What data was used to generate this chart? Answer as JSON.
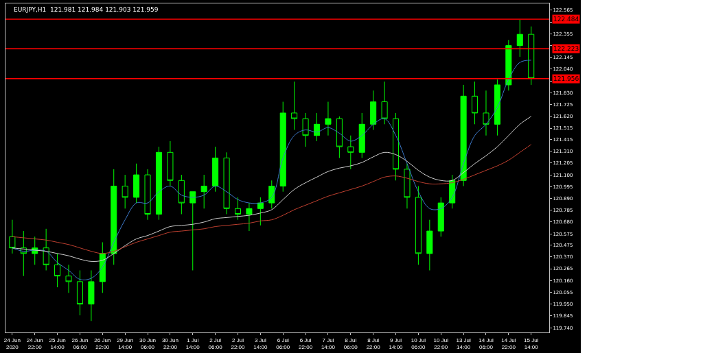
{
  "chart_data": {
    "type": "candlestick",
    "title": "EURJPY,H1  121.981 121.984 121.903 121.959",
    "categories": [
      "24 Jun 2020",
      null,
      "24 Jun 22:00",
      null,
      "25 Jun 14:00",
      null,
      "26 Jun 06:00",
      null,
      "26 Jun 22:00",
      null,
      "29 Jun 14:00",
      null,
      "30 Jun 06:00",
      null,
      "30 Jun 22:00",
      null,
      "1 Jul 14:00",
      null,
      "2 Jul 06:00",
      null,
      "2 Jul 22:00",
      null,
      "3 Jul 14:00",
      null,
      "6 Jul 06:00",
      null,
      "6 Jul 22:00",
      null,
      "7 Jul 14:00",
      null,
      "8 Jul 06:00",
      null,
      "8 Jul 22:00",
      null,
      "9 Jul 14:00",
      null,
      "10 Jul 06:00",
      null,
      "10 Jul 22:00",
      null,
      "13 Jul 14:00",
      null,
      "14 Jul 06:00",
      null,
      "14 Jul 22:00",
      null,
      "15 Jul 14:00"
    ],
    "color": "#00ff00",
    "ohlc": [
      [
        120.55,
        120.7,
        120.4,
        120.45
      ],
      [
        120.45,
        120.6,
        120.2,
        120.4
      ],
      [
        120.4,
        120.55,
        120.3,
        120.45
      ],
      [
        120.45,
        120.62,
        120.25,
        120.3
      ],
      [
        120.3,
        120.4,
        120.1,
        120.2
      ],
      [
        120.2,
        120.3,
        120.05,
        120.15
      ],
      [
        120.15,
        120.25,
        119.85,
        119.95
      ],
      [
        119.95,
        120.25,
        119.8,
        120.15
      ],
      [
        120.15,
        120.5,
        120.05,
        120.4
      ],
      [
        120.4,
        121.15,
        120.3,
        121.0
      ],
      [
        121.0,
        121.1,
        120.8,
        120.9
      ],
      [
        120.9,
        121.2,
        120.85,
        121.1
      ],
      [
        121.1,
        121.15,
        120.7,
        120.75
      ],
      [
        120.75,
        121.35,
        120.7,
        121.3
      ],
      [
        121.3,
        121.4,
        121.0,
        121.05
      ],
      [
        121.05,
        121.1,
        120.75,
        120.85
      ],
      [
        120.85,
        120.95,
        120.25,
        120.95
      ],
      [
        120.95,
        121.1,
        120.8,
        121.0
      ],
      [
        121.0,
        121.35,
        120.95,
        121.25
      ],
      [
        121.25,
        121.3,
        120.75,
        120.8
      ],
      [
        120.8,
        120.9,
        120.7,
        120.75
      ],
      [
        120.75,
        120.85,
        120.6,
        120.8
      ],
      [
        120.8,
        120.9,
        120.65,
        120.85
      ],
      [
        120.85,
        121.05,
        120.8,
        121.0
      ],
      [
        121.0,
        121.75,
        120.95,
        121.65
      ],
      [
        121.65,
        121.93,
        121.5,
        121.6
      ],
      [
        121.6,
        121.65,
        121.35,
        121.45
      ],
      [
        121.45,
        121.65,
        121.4,
        121.55
      ],
      [
        121.55,
        121.75,
        121.45,
        121.6
      ],
      [
        121.6,
        121.62,
        121.25,
        121.35
      ],
      [
        121.35,
        121.45,
        121.15,
        121.3
      ],
      [
        121.3,
        121.65,
        121.25,
        121.55
      ],
      [
        121.55,
        121.85,
        121.5,
        121.75
      ],
      [
        121.75,
        121.93,
        121.55,
        121.6
      ],
      [
        121.6,
        121.65,
        121.05,
        121.15
      ],
      [
        121.15,
        121.2,
        120.8,
        120.9
      ],
      [
        120.9,
        121.0,
        120.3,
        120.4
      ],
      [
        120.4,
        120.7,
        120.25,
        120.6
      ],
      [
        120.6,
        120.9,
        120.55,
        120.85
      ],
      [
        120.85,
        121.1,
        120.8,
        121.05
      ],
      [
        121.05,
        121.9,
        121.0,
        121.8
      ],
      [
        121.8,
        121.93,
        121.55,
        121.65
      ],
      [
        121.65,
        121.85,
        121.45,
        121.55
      ],
      [
        121.55,
        121.95,
        121.45,
        121.9
      ],
      [
        121.9,
        122.3,
        121.85,
        122.25
      ],
      [
        122.25,
        122.48,
        122.15,
        122.35
      ],
      [
        122.35,
        122.42,
        121.9,
        121.96
      ]
    ],
    "series": [
      {
        "type": "line",
        "color": "#3c78c8",
        "values": [
          120.45,
          120.42,
          120.43,
          120.42,
          120.32,
          120.25,
          120.17,
          120.18,
          120.28,
          120.5,
          120.7,
          120.85,
          120.85,
          120.95,
          121.0,
          120.92,
          120.9,
          120.92,
          121.0,
          120.95,
          120.88,
          120.85,
          120.85,
          120.9,
          121.25,
          121.45,
          121.5,
          121.48,
          121.52,
          121.47,
          121.4,
          121.45,
          121.55,
          121.6,
          121.45,
          121.2,
          120.95,
          120.8,
          120.8,
          120.9,
          121.2,
          121.45,
          121.55,
          121.7,
          121.95,
          122.1,
          122.12
        ]
      },
      {
        "type": "line",
        "color": "#d0d0d0",
        "values": [
          120.45,
          120.44,
          120.43,
          120.42,
          120.4,
          120.38,
          120.35,
          120.33,
          120.34,
          120.4,
          120.47,
          120.53,
          120.56,
          120.6,
          120.64,
          120.65,
          120.66,
          120.68,
          120.71,
          120.72,
          120.73,
          120.74,
          120.76,
          120.79,
          120.88,
          120.97,
          121.03,
          121.08,
          121.13,
          121.16,
          121.18,
          121.21,
          121.26,
          121.3,
          121.28,
          121.22,
          121.14,
          121.08,
          121.05,
          121.05,
          121.12,
          121.2,
          121.27,
          121.35,
          121.45,
          121.55,
          121.62
        ]
      },
      {
        "type": "line",
        "color": "#c04030",
        "values": [
          120.55,
          120.54,
          120.53,
          120.52,
          120.5,
          120.48,
          120.45,
          120.42,
          120.4,
          120.42,
          120.46,
          120.5,
          120.53,
          120.56,
          120.59,
          120.6,
          120.61,
          120.62,
          120.64,
          120.65,
          120.66,
          120.67,
          120.69,
          120.7,
          120.74,
          120.79,
          120.83,
          120.87,
          120.91,
          120.94,
          120.97,
          121.0,
          121.04,
          121.08,
          121.09,
          121.07,
          121.04,
          121.02,
          121.02,
          121.03,
          121.06,
          121.1,
          121.14,
          121.18,
          121.23,
          121.3,
          121.37
        ]
      }
    ],
    "ylim": [
      119.698,
      122.625
    ],
    "yticks": [
      122.565,
      {
        "value": 122.46,
        "label": null
      },
      122.355,
      {
        "value": 122.25,
        "label": null
      },
      122.145,
      {
        "value": 122.04,
        "label": "122.040"
      },
      {
        "value": 121.935,
        "label": null
      },
      {
        "value": 121.83,
        "label": "121.830"
      },
      121.725,
      {
        "value": 121.62,
        "label": "121.620"
      },
      121.515,
      121.415,
      {
        "value": 121.31,
        "label": "121.310"
      },
      121.205,
      {
        "value": 121.1,
        "label": "121.100"
      },
      120.995,
      {
        "value": 120.89,
        "label": "120.890"
      },
      120.785,
      {
        "value": 120.68,
        "label": "120.680"
      },
      120.575,
      120.475,
      {
        "value": 120.37,
        "label": "120.370"
      },
      120.265,
      {
        "value": 120.16,
        "label": "120.160"
      },
      120.055,
      {
        "value": 119.95,
        "label": "119.950"
      },
      119.845,
      {
        "value": 119.74,
        "label": "119.740"
      }
    ],
    "ref_lines": [
      {
        "axis": "y",
        "value": 122.484,
        "label": "122.484",
        "color": "#ff0000"
      },
      {
        "axis": "y",
        "value": 122.223,
        "label": "122.223",
        "color": "#ff0000"
      },
      {
        "axis": "y",
        "value": 121.956,
        "label": "121.956",
        "color": "#ff0000"
      }
    ],
    "grid": false
  }
}
